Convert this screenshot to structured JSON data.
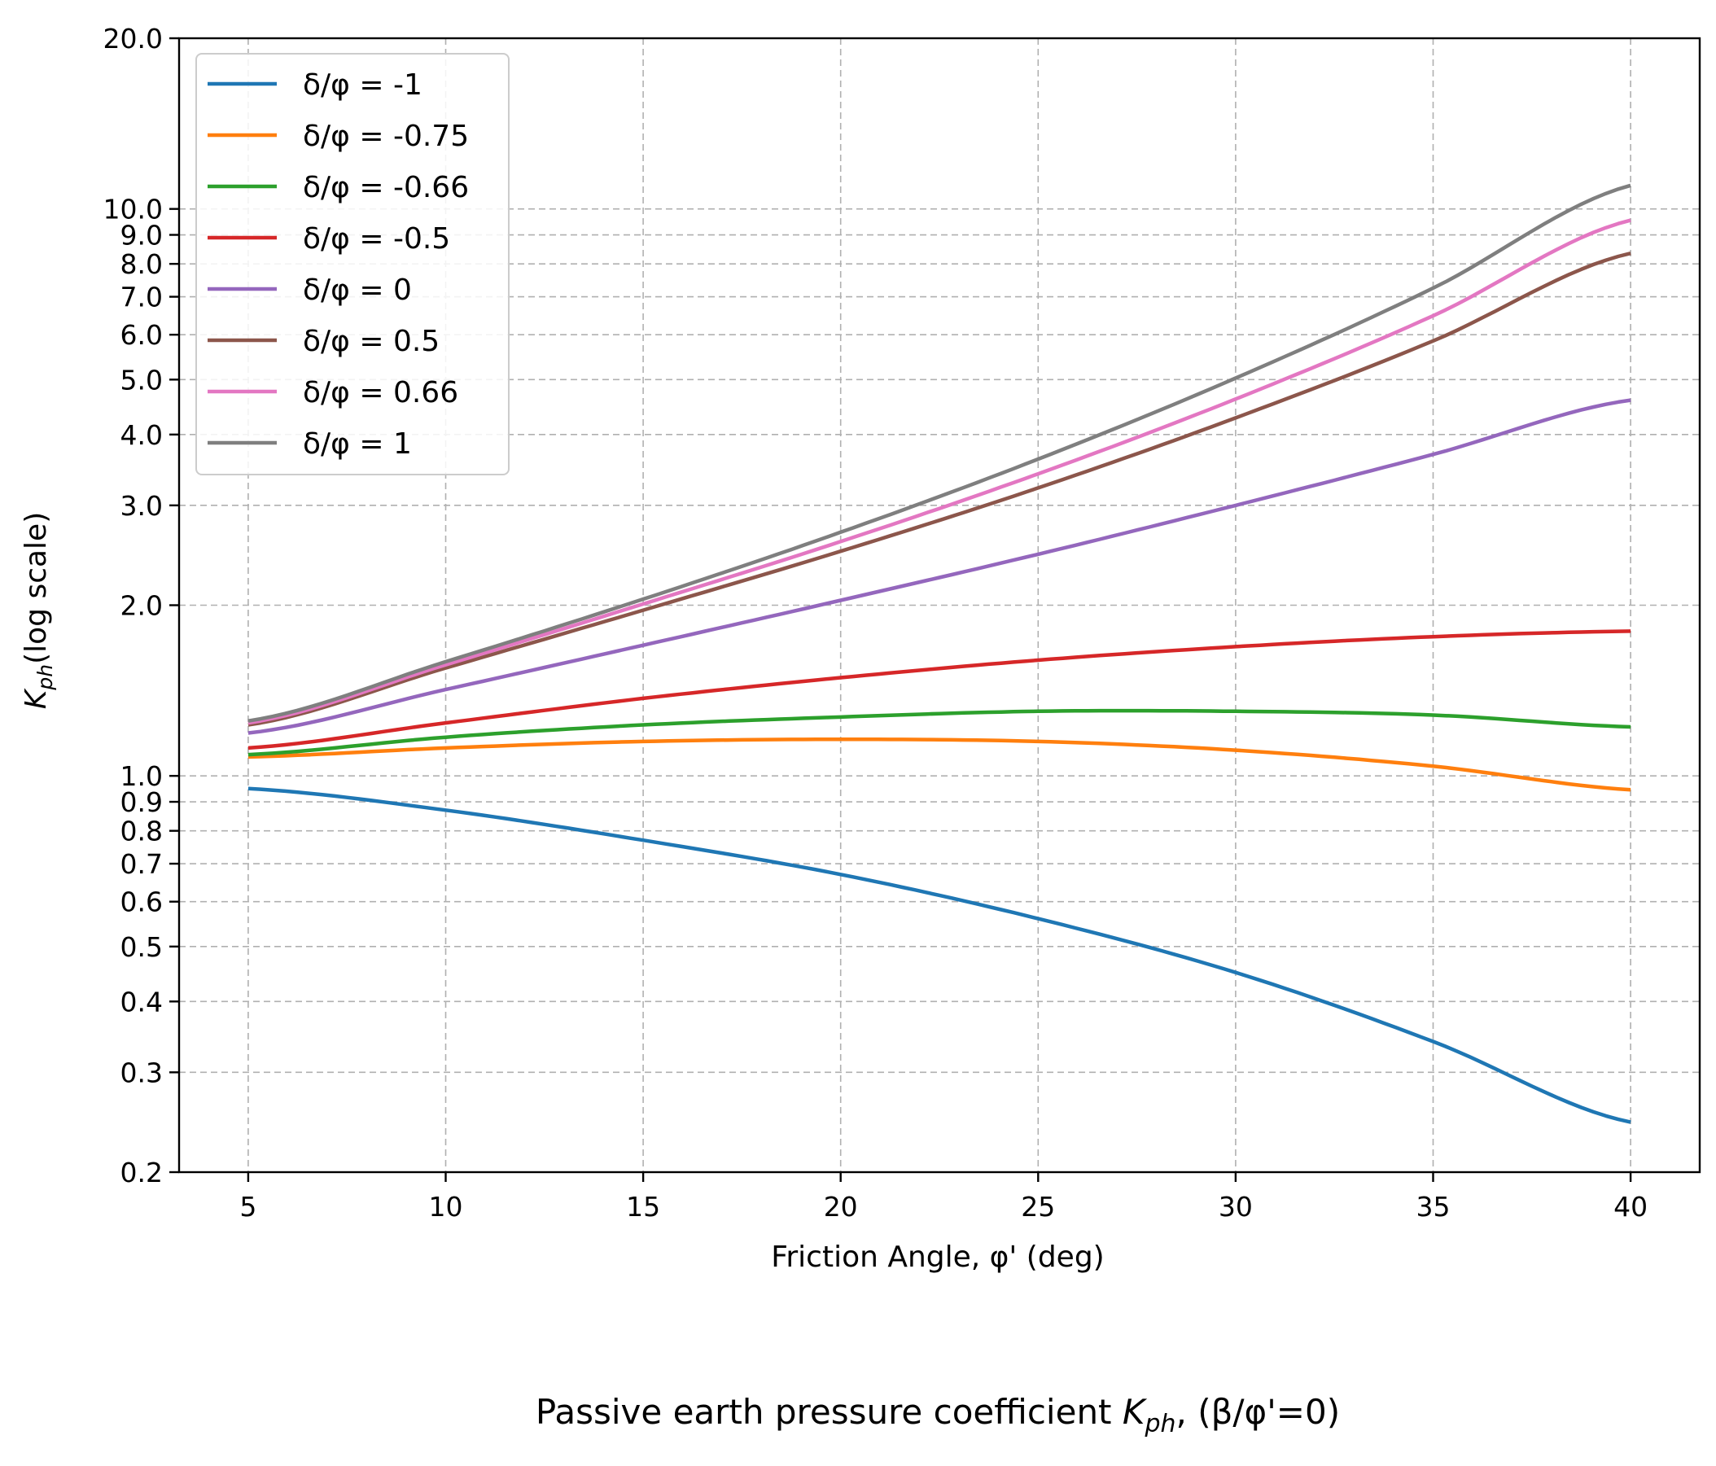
{
  "chart_data": {
    "type": "line",
    "title": "",
    "xlabel": "Friction Angle, φ' (deg)",
    "ylabel": "(log scale)",
    "ylabel_symbol": "K",
    "ylabel_sub": "ph",
    "caption_pre": "Passive earth pressure coefficient ",
    "caption_symbol": "K",
    "caption_sub": "ph",
    "caption_post": ", (β/φ'=0)",
    "yscale": "log",
    "xlim": [
      3.25,
      41.75
    ],
    "ylim": [
      0.2,
      20.0
    ],
    "grid": true,
    "legend_position": "upper-left",
    "x_ticks": [
      5,
      10,
      15,
      20,
      25,
      30,
      35,
      40
    ],
    "x_tick_labels": [
      "5",
      "10",
      "15",
      "20",
      "25",
      "30",
      "35",
      "40"
    ],
    "y_ticks": [
      0.2,
      0.3,
      0.4,
      0.5,
      0.6,
      0.7,
      0.8,
      0.9,
      1.0,
      2.0,
      3.0,
      4.0,
      5.0,
      6.0,
      7.0,
      8.0,
      9.0,
      10.0,
      20.0
    ],
    "y_tick_labels": [
      "0.2",
      "0.3",
      "0.4",
      "0.5",
      "0.6",
      "0.7",
      "0.8",
      "0.9",
      "1.0",
      "2.0",
      "3.0",
      "4.0",
      "5.0",
      "6.0",
      "7.0",
      "8.0",
      "9.0",
      "10.0",
      "20.0"
    ],
    "x": [
      5,
      10,
      15,
      20,
      25,
      30,
      35,
      40
    ],
    "series": [
      {
        "name": "δ/φ = -1",
        "color": "#1f77b4",
        "values": [
          0.95,
          0.87,
          0.77,
          0.67,
          0.56,
          0.45,
          0.34,
          0.245
        ]
      },
      {
        "name": "δ/φ = -0.75",
        "color": "#ff7f0e",
        "values": [
          1.08,
          1.12,
          1.15,
          1.16,
          1.15,
          1.11,
          1.04,
          0.945
        ]
      },
      {
        "name": "δ/φ = -0.66",
        "color": "#2ca02c",
        "values": [
          1.09,
          1.17,
          1.23,
          1.27,
          1.3,
          1.3,
          1.28,
          1.22
        ]
      },
      {
        "name": "δ/φ = -0.5",
        "color": "#d62728",
        "values": [
          1.12,
          1.24,
          1.37,
          1.49,
          1.6,
          1.69,
          1.76,
          1.8
        ]
      },
      {
        "name": "δ/φ = 0",
        "color": "#9467bd",
        "values": [
          1.19,
          1.42,
          1.7,
          2.04,
          2.46,
          3.0,
          3.69,
          4.6
        ]
      },
      {
        "name": "δ/φ = 0.5",
        "color": "#8c564b",
        "values": [
          1.23,
          1.55,
          1.96,
          2.49,
          3.22,
          4.28,
          5.85,
          8.35
        ]
      },
      {
        "name": "δ/φ = 0.66",
        "color": "#e377c2",
        "values": [
          1.24,
          1.57,
          2.01,
          2.59,
          3.41,
          4.62,
          6.48,
          9.55
        ]
      },
      {
        "name": "δ/φ = 1",
        "color": "#7f7f7f",
        "values": [
          1.25,
          1.59,
          2.05,
          2.69,
          3.62,
          5.03,
          7.25,
          11.0
        ]
      }
    ]
  }
}
